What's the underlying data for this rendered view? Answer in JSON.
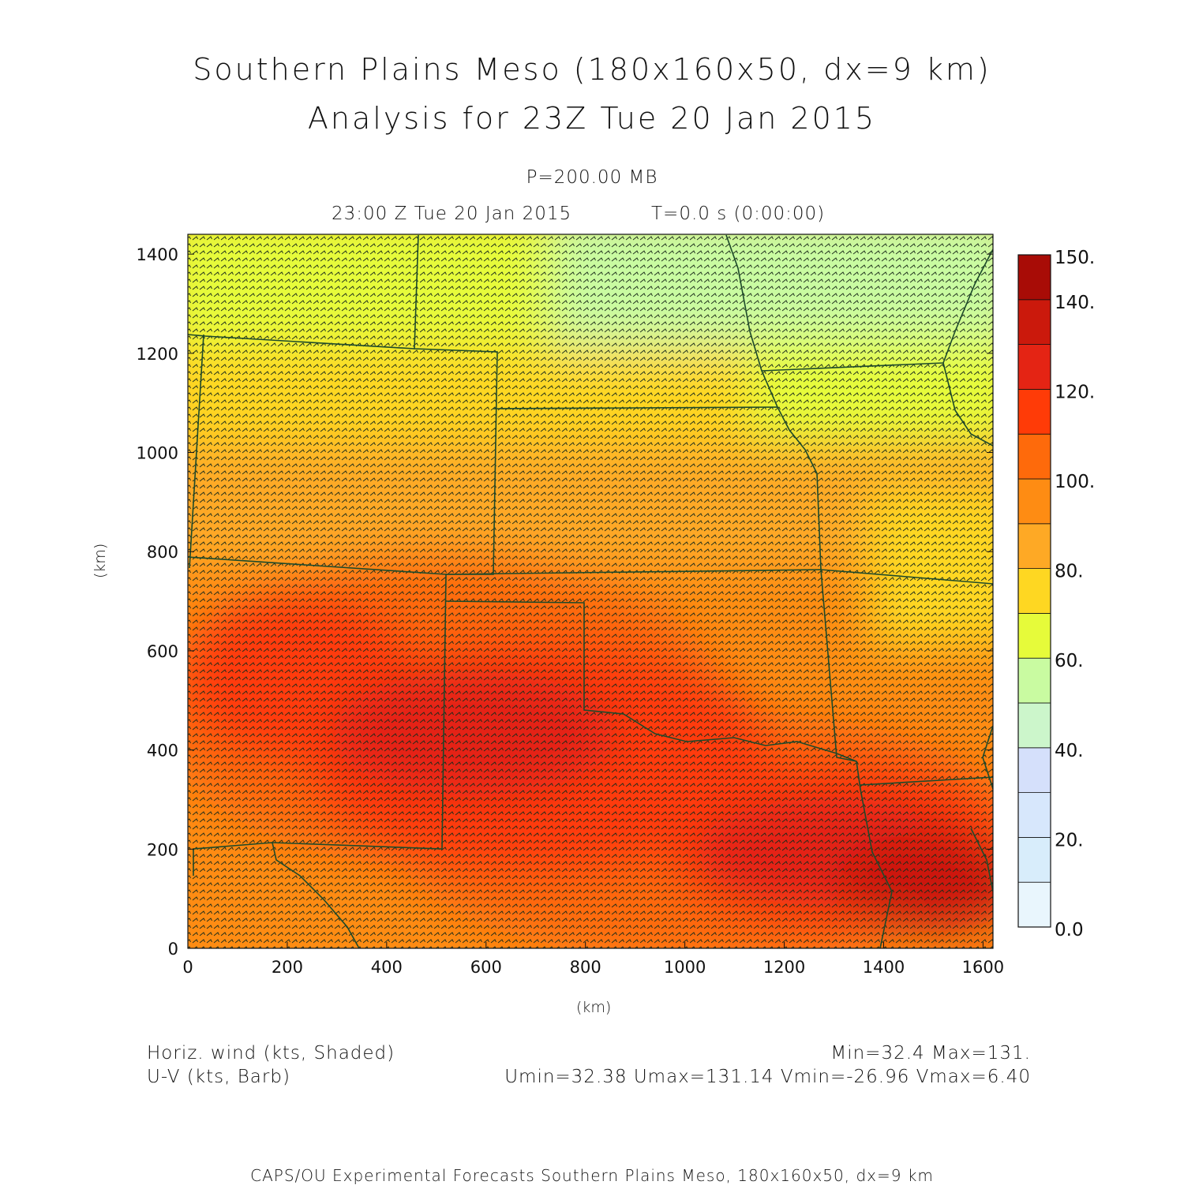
{
  "title": "Southern Plains Meso (180x160x50, dx=9 km)",
  "subtitle": "Analysis for 23Z Tue 20 Jan 2015",
  "level": "P=200.00 MB",
  "valid_time": "23:00 Z Tue 20 Jan 2015",
  "time_step": "T=0.0 s (0:00:00)",
  "field_shaded": "Horiz. wind (kts, Shaded)",
  "field_vector": "U-V (kts, Barb)",
  "min_max": "Min=32.4 Max=131.",
  "uv_stats": "Umin=32.38 Umax=131.14 Vmin=-26.96 Vmax=6.40",
  "footer": "CAPS/OU Experimental Forecasts  Southern Plains Meso, 180x160x50, dx=9 km",
  "axes": {
    "xlabel": "(km)",
    "ylabel": "(km)",
    "xlim": [
      0,
      1620
    ],
    "ylim": [
      0,
      1440
    ],
    "xticks": [
      0,
      200,
      400,
      600,
      800,
      1000,
      1200,
      1400,
      1600
    ],
    "yticks": [
      0,
      200,
      400,
      600,
      800,
      1000,
      1200,
      1400
    ],
    "xtick_labels": [
      "0",
      "200",
      "400",
      "600",
      "800",
      "1000",
      "1200",
      "1400",
      "1600"
    ],
    "ytick_labels": [
      "0",
      "200",
      "400",
      "600",
      "800",
      "1000",
      "1200",
      "1400"
    ]
  },
  "colorbar": {
    "boundaries": [
      0,
      10,
      20,
      30,
      40,
      50,
      60,
      70,
      80,
      90,
      100,
      110,
      120,
      130,
      140,
      150
    ],
    "colors": [
      "#e9f6fd",
      "#d8edfb",
      "#d7e7fc",
      "#d5e0fb",
      "#ccf6cb",
      "#c9fba1",
      "#e6fb3a",
      "#fed722",
      "#fea925",
      "#fe8c13",
      "#fe6a0b",
      "#ff3b07",
      "#e42414",
      "#cb190c",
      "#a80c06"
    ],
    "labels": [
      "150.",
      "140.",
      "120.",
      "100.",
      "80.",
      "60.",
      "40.",
      "20.",
      "0.0"
    ],
    "label_values": [
      150,
      140,
      120,
      100,
      80,
      60,
      40,
      20,
      0
    ]
  },
  "field_summary": {
    "min": 32.4,
    "max": 131,
    "jet_core": "southeast"
  },
  "map": {
    "boundary_color": "#1d4a2a",
    "barb_color": "#1a2b1a"
  }
}
